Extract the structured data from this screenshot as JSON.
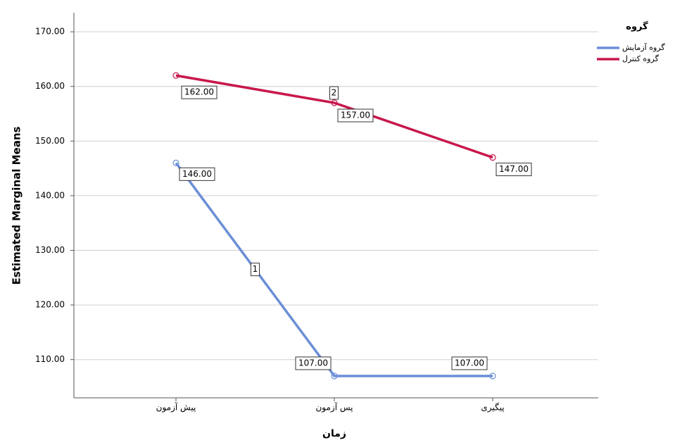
{
  "chart_data": {
    "type": "line",
    "x_label": "زمان",
    "y_label": "Estimated Marginal Means",
    "legend_title": "گروه",
    "legend_position": "upper-right",
    "categories": [
      "پیش آزمون",
      "پس آزمون",
      "پیگیری"
    ],
    "series": [
      {
        "name": "گروه آزمایش",
        "color": "#6b8fd6",
        "values": [
          146,
          107,
          107
        ],
        "value_labels": [
          "146.00",
          "107.00",
          "107.00"
        ],
        "line_label": "1"
      },
      {
        "name": "گروه کنترل",
        "color": "#c8174a",
        "values": [
          162,
          157,
          147
        ],
        "value_labels": [
          "162.00",
          "157.00",
          "147.00"
        ],
        "line_label": "2"
      }
    ],
    "ylim": [
      103,
      173.5
    ],
    "yticks": [
      {
        "value": 110,
        "label": "110.00"
      },
      {
        "value": 120,
        "label": "120.00"
      },
      {
        "value": 130,
        "label": "130.00"
      },
      {
        "value": 140,
        "label": "140.00"
      },
      {
        "value": 150,
        "label": "150.00"
      },
      {
        "value": 160,
        "label": "160.00"
      },
      {
        "value": 170,
        "label": "170.00"
      }
    ],
    "grid": true
  }
}
